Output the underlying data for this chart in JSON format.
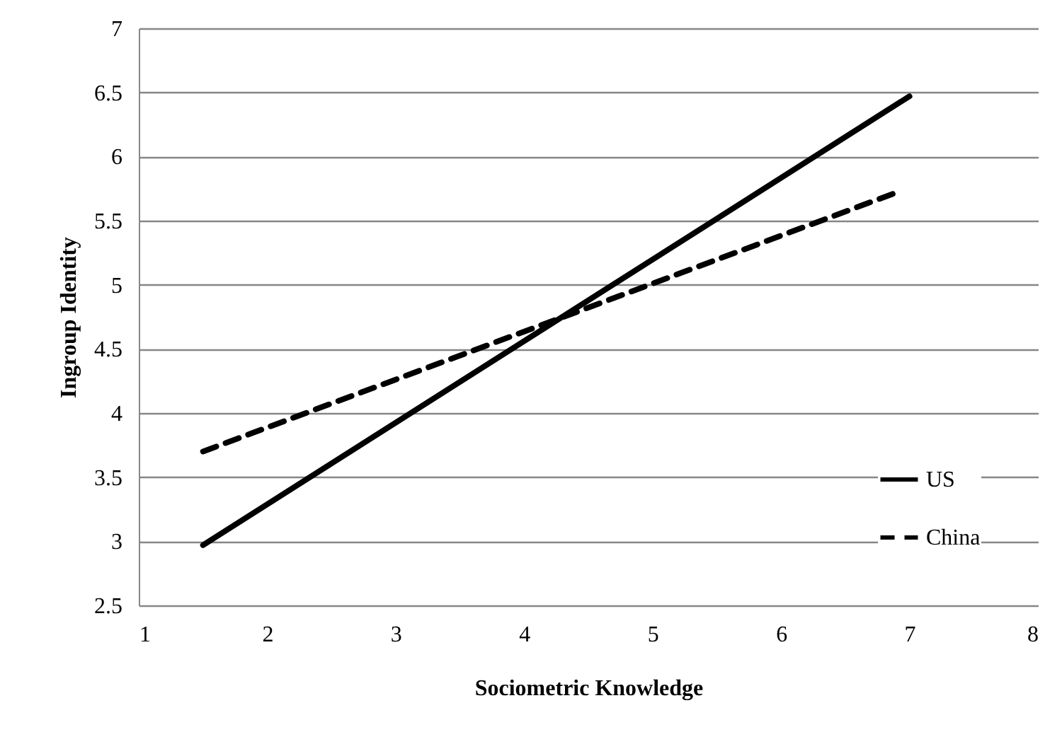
{
  "chart_data": {
    "type": "line",
    "xlabel": "Sociometric Knowledge",
    "ylabel": "Ingroup Identity",
    "series": [
      {
        "name": "US",
        "color": "#000000",
        "line_style": "solid",
        "x": [
          1.5,
          7
        ],
        "values": [
          2.97,
          6.47
        ]
      },
      {
        "name": "China",
        "color": "#000000",
        "line_style": "dashed",
        "x": [
          1.5,
          6.9
        ],
        "values": [
          3.7,
          5.72
        ]
      }
    ],
    "xlim": [
      1,
      8
    ],
    "xticks": [
      1,
      2,
      3,
      4,
      5,
      6,
      7,
      8
    ],
    "ylim": [
      2.5,
      7
    ],
    "yticks": [
      2.5,
      3,
      3.5,
      4,
      4.5,
      5,
      5.5,
      6,
      6.5,
      7
    ],
    "grid": "y",
    "legend": "bottom right",
    "marker": "none"
  }
}
